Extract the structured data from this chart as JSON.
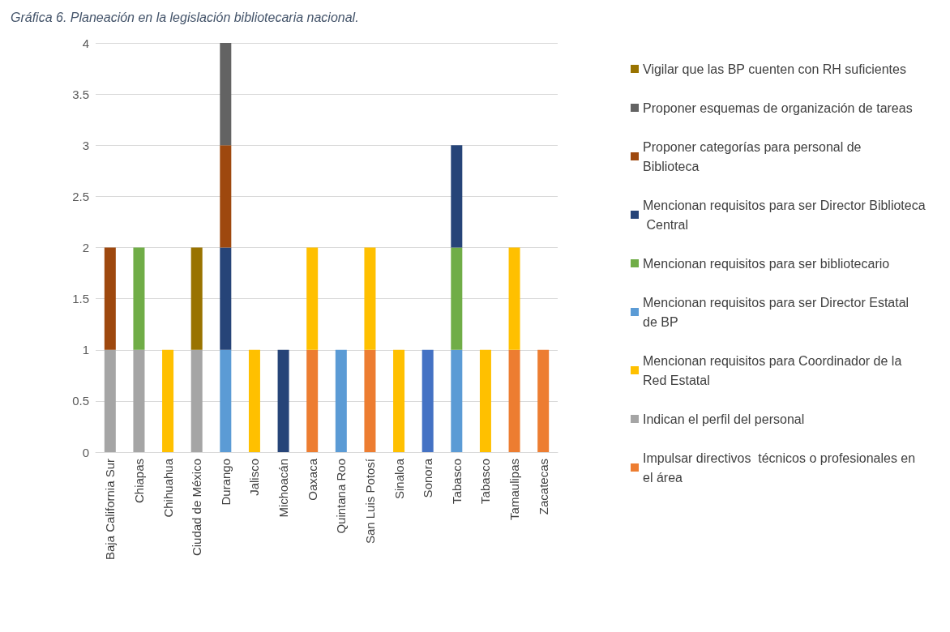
{
  "chart_data": {
    "type": "bar",
    "title": "Gráfica 6. Planeación en la legislación bibliotecaria nacional.",
    "categories": [
      "Baja California Sur",
      "Chiapas",
      "Chihuahua",
      "Ciudad de México",
      "Durango",
      "Jalisco",
      "Michoacán",
      "Oaxaca",
      "Quintana Roo",
      "San Luis Potosí",
      "Sinaloa",
      "Sonora",
      "Tabasco",
      "Tabasco",
      "Tamaulipas",
      "Zacatecas"
    ],
    "stacked": true,
    "series": [
      {
        "name": "Impulsar directivos  técnicos o profesionales en el área",
        "color": "#ed7d31",
        "values": [
          null,
          null,
          null,
          null,
          null,
          null,
          null,
          1,
          null,
          1,
          null,
          null,
          null,
          null,
          1,
          1
        ]
      },
      {
        "name": "Indican el perfil del personal",
        "color": "#a5a5a5",
        "values": [
          1,
          1,
          null,
          1,
          null,
          null,
          null,
          null,
          null,
          null,
          null,
          null,
          null,
          null,
          null,
          null
        ]
      },
      {
        "name": "Mencionan requisitos para Coordinador de la Red Estatal",
        "color": "#ffc000",
        "values": [
          null,
          null,
          1,
          null,
          null,
          1,
          null,
          1,
          null,
          1,
          1,
          null,
          null,
          1,
          1,
          null
        ]
      },
      {
        "name": "Mencionan requisitos para ser Director Estatal de BP",
        "color": "#5b9bd5",
        "values": [
          null,
          null,
          null,
          null,
          1,
          null,
          null,
          null,
          1,
          null,
          null,
          null,
          1,
          null,
          null,
          null
        ]
      },
      {
        "color": "#4472c4",
        "values": [
          null,
          null,
          null,
          null,
          null,
          null,
          null,
          null,
          null,
          null,
          null,
          1,
          null,
          null,
          null,
          null
        ]
      },
      {
        "name": "Mencionan requisitos para ser bibliotecario",
        "color": "#70ad47",
        "values": [
          null,
          1,
          null,
          null,
          null,
          null,
          null,
          null,
          null,
          null,
          null,
          null,
          1,
          null,
          null,
          null
        ]
      },
      {
        "name": "Mencionan requisitos para ser Director Biblioteca Central",
        "color": "#264478",
        "values": [
          null,
          null,
          null,
          null,
          1,
          null,
          1,
          null,
          null,
          null,
          null,
          null,
          1,
          null,
          null,
          null
        ]
      },
      {
        "name": "Proponer categorías para personal de Biblioteca",
        "color": "#9e480e",
        "values": [
          1,
          null,
          null,
          null,
          1,
          null,
          null,
          null,
          null,
          null,
          null,
          null,
          null,
          null,
          null,
          null
        ]
      },
      {
        "name": "Proponer esquemas de organización de tareas",
        "color": "#636363",
        "values": [
          null,
          null,
          null,
          null,
          1,
          null,
          null,
          null,
          null,
          null,
          null,
          null,
          null,
          null,
          null,
          null
        ]
      },
      {
        "name": "Vigilar que las BP cuenten con RH suficientes",
        "color": "#997300",
        "values": [
          null,
          null,
          null,
          1,
          null,
          null,
          null,
          null,
          null,
          null,
          null,
          null,
          null,
          null,
          null,
          null
        ]
      }
    ],
    "ylim": [
      0,
      4
    ],
    "yticks": [
      0,
      0.5,
      1,
      1.5,
      2,
      2.5,
      3,
      3.5,
      4
    ],
    "grid": "y",
    "legend": "right"
  }
}
